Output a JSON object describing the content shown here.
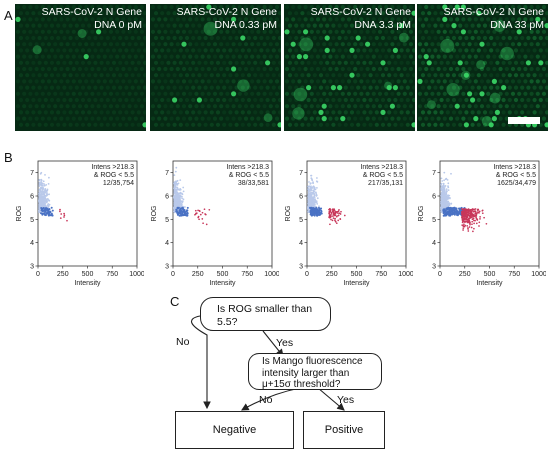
{
  "panel_a": {
    "letter": "A",
    "images": [
      {
        "line1": "SARS-CoV-2 N Gene",
        "line2": "DNA 0 pM"
      },
      {
        "line1": "SARS-CoV-2 N Gene",
        "line2": "DNA 0.33 pM"
      },
      {
        "line1": "SARS-CoV-2 N Gene",
        "line2": "DNA 3.3 pM"
      },
      {
        "line1": "SARS-CoV-2 N Gene",
        "line2": "DNA 33 pM"
      }
    ],
    "colors": {
      "background": "#062914",
      "droplet": "#1a8a3e",
      "bright": "#3ddc6a"
    }
  },
  "panel_b": {
    "letter": "B",
    "chart_data": [
      {
        "type": "scatter",
        "xlabel": "Intensity",
        "ylabel": "ROG",
        "xlim": [
          0,
          1000
        ],
        "ylim": [
          3,
          7.5
        ],
        "xticks": [
          "0",
          "250",
          "500",
          "750",
          "1000"
        ],
        "yticks": [
          "3",
          "4",
          "5",
          "6",
          "7"
        ],
        "annotation": [
          "Intens >218.3",
          "& ROG < 5.5",
          "12/35,754"
        ]
      },
      {
        "type": "scatter",
        "xlabel": "Intensity",
        "ylabel": "ROG",
        "xlim": [
          0,
          1000
        ],
        "ylim": [
          3,
          7.5
        ],
        "xticks": [
          "0",
          "250",
          "500",
          "750",
          "1000"
        ],
        "yticks": [
          "3",
          "4",
          "5",
          "6",
          "7"
        ],
        "annotation": [
          "Intens >218.3",
          "& ROG < 5.5",
          "38/33,581"
        ]
      },
      {
        "type": "scatter",
        "xlabel": "Intensity",
        "ylabel": "ROG",
        "xlim": [
          0,
          1000
        ],
        "ylim": [
          3,
          7.5
        ],
        "xticks": [
          "0",
          "250",
          "500",
          "750",
          "1000"
        ],
        "yticks": [
          "3",
          "4",
          "5",
          "6",
          "7"
        ],
        "annotation": [
          "Intens >218.3",
          "& ROG < 5.5",
          "217/35,131"
        ]
      },
      {
        "type": "scatter",
        "xlabel": "Intensity",
        "ylabel": "ROG",
        "xlim": [
          0,
          1000
        ],
        "ylim": [
          3,
          7.5
        ],
        "xticks": [
          "0",
          "250",
          "500",
          "750",
          "1000"
        ],
        "yticks": [
          "3",
          "4",
          "5",
          "6",
          "7"
        ],
        "annotation": [
          "Intens >218.3",
          "& ROG < 5.5",
          "1625/34,479"
        ]
      }
    ],
    "colors": {
      "cloud": "#b9c9ea",
      "dense": "#4a72c4",
      "positive": "#c8375a"
    }
  },
  "panel_c": {
    "letter": "C",
    "q1": [
      "Is ROG smaller than",
      "5.5?"
    ],
    "q2": [
      "Is Mango fluorescence",
      "intensity larger than",
      "μ+15σ threshold?"
    ],
    "no1": "No",
    "yes1": "Yes",
    "no2": "No",
    "yes2": "Yes",
    "negative": "Negative",
    "positive": "Positive"
  }
}
